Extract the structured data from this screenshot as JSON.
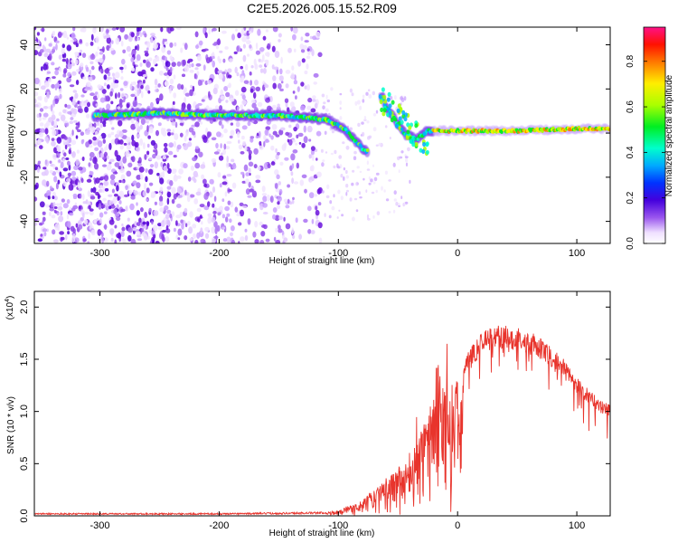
{
  "title": "C2E5.2026.005.15.52.R09",
  "chart_data": [
    {
      "type": "heatmap",
      "xlabel": "Height of straight line (km)",
      "ylabel": "Frequency (Hz)",
      "xlim": [
        -355,
        128
      ],
      "ylim": [
        -50,
        48
      ],
      "xticks": [
        -300,
        -200,
        -100,
        0,
        100
      ],
      "yticks": [
        -40,
        -20,
        0,
        20,
        40
      ],
      "colorbar": {
        "label": "Normalized spectral amplitude",
        "range": [
          0.0,
          0.95
        ],
        "ticks": [
          0.0,
          0.2,
          0.4,
          0.6,
          0.8
        ],
        "tick_labels": [
          "0.0",
          "0.2",
          "0.4",
          "0.6",
          "0.8"
        ]
      },
      "ridge": {
        "x": [
          -300,
          -250,
          -200,
          -150,
          -125,
          -110,
          -95,
          -80,
          -70,
          -65,
          -55,
          -45,
          -35,
          -25,
          -10,
          0,
          50,
          100,
          128
        ],
        "y": [
          8,
          9,
          8,
          8,
          7,
          6,
          2,
          -7,
          -10,
          16,
          8,
          0,
          -3,
          1,
          1,
          1,
          1,
          2,
          2
        ]
      }
    },
    {
      "type": "line",
      "xlabel": "Height of straight line (km)",
      "ylabel": "SNR (10 * v/v)",
      "ylabel_exponent": "(x10^4)",
      "ylabel_exp_base": "(x10",
      "ylabel_exp_power": "4",
      "ylabel_exp_close": ")",
      "xlim": [
        -355,
        128
      ],
      "ylim": [
        0,
        2.15
      ],
      "xticks": [
        -300,
        -200,
        -100,
        0,
        100
      ],
      "yticks": [
        0.0,
        0.5,
        1.0,
        1.5,
        2.0
      ],
      "ytick_labels": [
        "0.0",
        "0.5",
        "1.0",
        "1.5",
        "2.0"
      ],
      "series": [
        {
          "color": "#e8342c",
          "envelope_x": [
            -355,
            -200,
            -110,
            -100,
            -80,
            -60,
            -50,
            -40,
            -30,
            -20,
            -18,
            -10,
            0,
            10,
            20,
            30,
            40,
            50,
            60,
            70,
            80,
            90,
            100,
            110,
            120,
            128
          ],
          "envelope_y": [
            0.02,
            0.02,
            0.03,
            0.05,
            0.15,
            0.35,
            0.45,
            0.55,
            0.85,
            1.2,
            1.5,
            1.3,
            1.3,
            1.55,
            1.72,
            1.78,
            1.78,
            1.76,
            1.72,
            1.65,
            1.55,
            1.45,
            1.3,
            1.18,
            1.08,
            1.05
          ]
        }
      ]
    }
  ]
}
